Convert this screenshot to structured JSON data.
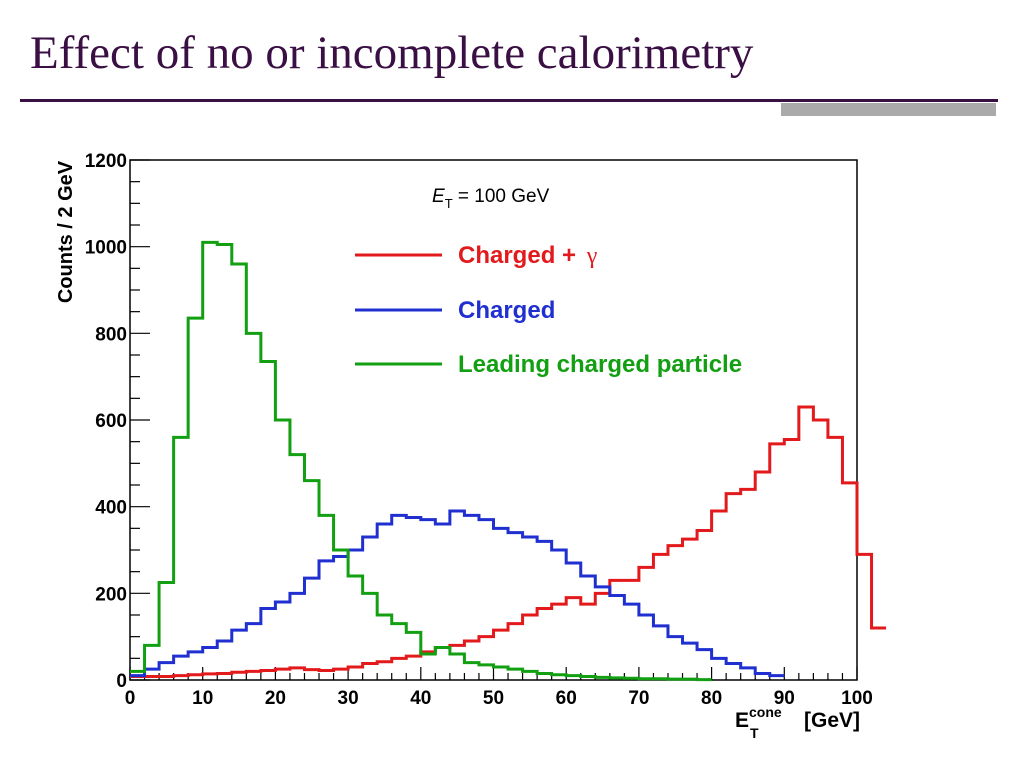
{
  "slide": {
    "title": "Effect of no or incomplete calorimetry"
  },
  "colors": {
    "title": "#3a0f44",
    "rule": "#3a0f44",
    "accent_bar": "#aaaaaa"
  },
  "chart_data": {
    "type": "line",
    "style": "step-histogram",
    "annotation": {
      "symbol": "E",
      "subscript": "T",
      "text": " = 100 GeV"
    },
    "ylabel": "Counts  /  2  GeV",
    "xlabel": {
      "symbol": "E",
      "subscript": "T",
      "superscript": "cone",
      "unit": "[GeV]"
    },
    "xlim": [
      0,
      100
    ],
    "ylim": [
      0,
      1200
    ],
    "x_ticks": [
      0,
      10,
      20,
      30,
      40,
      50,
      60,
      70,
      80,
      90,
      100
    ],
    "y_ticks": [
      0,
      200,
      400,
      600,
      800,
      1000,
      1200
    ],
    "grid": false,
    "legend_position": "top-right",
    "bin_width": 2,
    "bin_edges_start": 0,
    "series": [
      {
        "name": "Charged  +  ",
        "name_symbol": "γ",
        "color": "#e31a1c",
        "values": [
          8,
          8,
          8,
          10,
          12,
          14,
          15,
          18,
          20,
          22,
          25,
          28,
          24,
          22,
          25,
          30,
          38,
          42,
          50,
          55,
          65,
          75,
          80,
          90,
          100,
          115,
          130,
          150,
          165,
          175,
          190,
          175,
          200,
          230,
          230,
          260,
          290,
          310,
          325,
          345,
          390,
          430,
          440,
          480,
          545,
          555,
          630,
          600,
          560,
          455,
          290,
          120
        ]
      },
      {
        "name": "Charged",
        "color": "#1f2fd0",
        "values": [
          10,
          25,
          40,
          55,
          65,
          75,
          90,
          115,
          130,
          165,
          180,
          200,
          235,
          275,
          285,
          300,
          330,
          360,
          380,
          375,
          370,
          360,
          390,
          380,
          370,
          350,
          340,
          330,
          320,
          300,
          270,
          240,
          215,
          195,
          175,
          150,
          125,
          100,
          85,
          70,
          50,
          38,
          28,
          15,
          10
        ]
      },
      {
        "name": "Leading  charged  particle",
        "name_symbol": "",
        "color": "#12a012",
        "values": [
          20,
          80,
          225,
          560,
          835,
          1010,
          1005,
          960,
          800,
          735,
          600,
          520,
          460,
          380,
          300,
          240,
          200,
          150,
          130,
          110,
          60,
          75,
          60,
          40,
          35,
          30,
          25,
          20,
          15,
          12,
          10,
          8,
          6,
          5,
          4,
          3,
          3,
          2,
          2,
          1
        ]
      }
    ]
  }
}
